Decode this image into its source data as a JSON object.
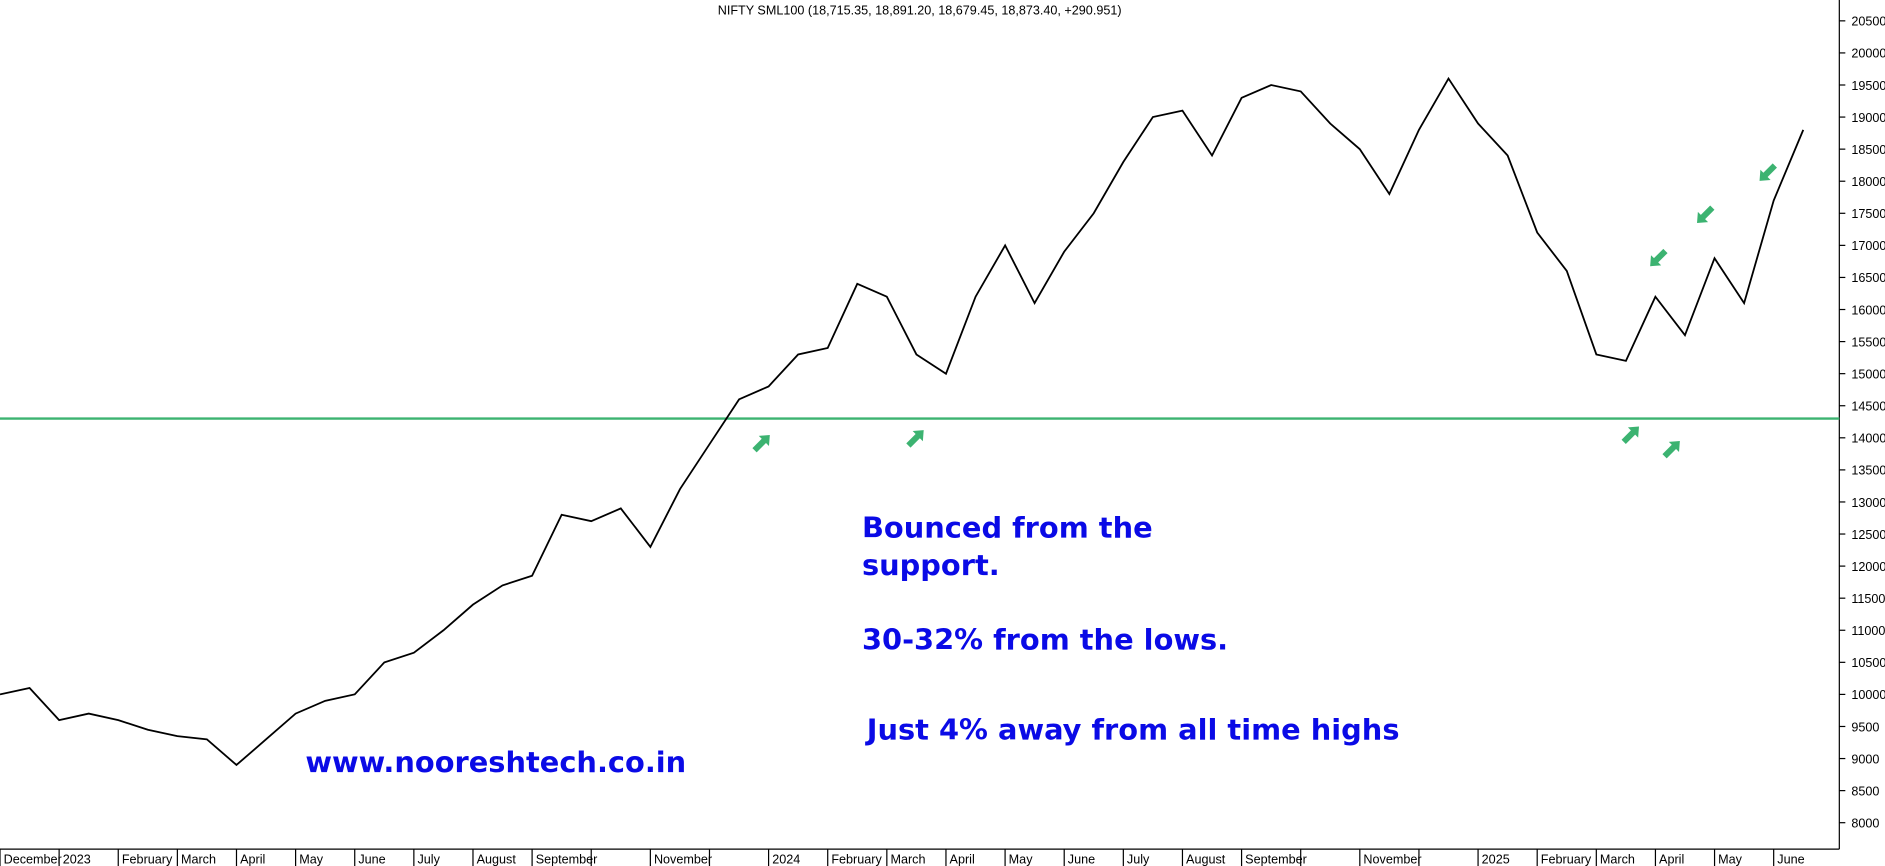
{
  "chart_data": {
    "type": "line",
    "title": "NIFTY SML100 (18,715.35, 18,891.20, 18,679.45, 18,873.40, +290.951)",
    "categories": [
      "December",
      null,
      "2023",
      null,
      "February",
      null,
      "March",
      null,
      "April",
      null,
      "May",
      null,
      "June",
      null,
      "July",
      null,
      "August",
      null,
      "September",
      null,
      null,
      null,
      "November",
      null,
      null,
      null,
      "2024",
      null,
      "February",
      null,
      "March",
      null,
      "April",
      null,
      "May",
      null,
      "June",
      null,
      "July",
      null,
      "August",
      null,
      "September",
      null,
      null,
      null,
      "November",
      null,
      null,
      null,
      "2025",
      null,
      "February",
      null,
      "March",
      null,
      "April",
      null,
      "May",
      null,
      "June",
      null
    ],
    "series": [
      {
        "name": "NIFTY SML100",
        "color": "#000000",
        "values": [
          10000,
          10100,
          9600,
          9700,
          9600,
          9450,
          9350,
          9300,
          8900,
          9300,
          9700,
          9900,
          10000,
          10500,
          10650,
          11000,
          11400,
          11700,
          11850,
          12800,
          12700,
          12900,
          12300,
          13200,
          13900,
          14600,
          14800,
          15300,
          15400,
          16400,
          16200,
          15300,
          15000,
          16200,
          17000,
          16100,
          16900,
          17500,
          18300,
          19000,
          19100,
          18400,
          19300,
          19500,
          19400,
          18900,
          18500,
          17800,
          18800,
          19600,
          18900,
          18400,
          17200,
          16600,
          15300,
          15200,
          16200,
          15600,
          16800,
          16100,
          17700,
          18800
        ]
      }
    ],
    "ylim": [
      7325,
      20825
    ],
    "yticks": [
      8000,
      8500,
      9000,
      9500,
      10000,
      10500,
      11000,
      11500,
      12000,
      12500,
      13000,
      13500,
      14000,
      14500,
      15000,
      15500,
      16000,
      16500,
      17000,
      17500,
      18000,
      18500,
      19000,
      19500,
      20000,
      20500
    ],
    "reference_line": {
      "value": 14300,
      "color": "#3cb371"
    },
    "annotations": [
      "Bounced from the",
      "support.",
      "30-32% from the lows.",
      "Just 4% away from all time highs",
      "www.nooreshtech.co.in"
    ],
    "grid": false
  }
}
